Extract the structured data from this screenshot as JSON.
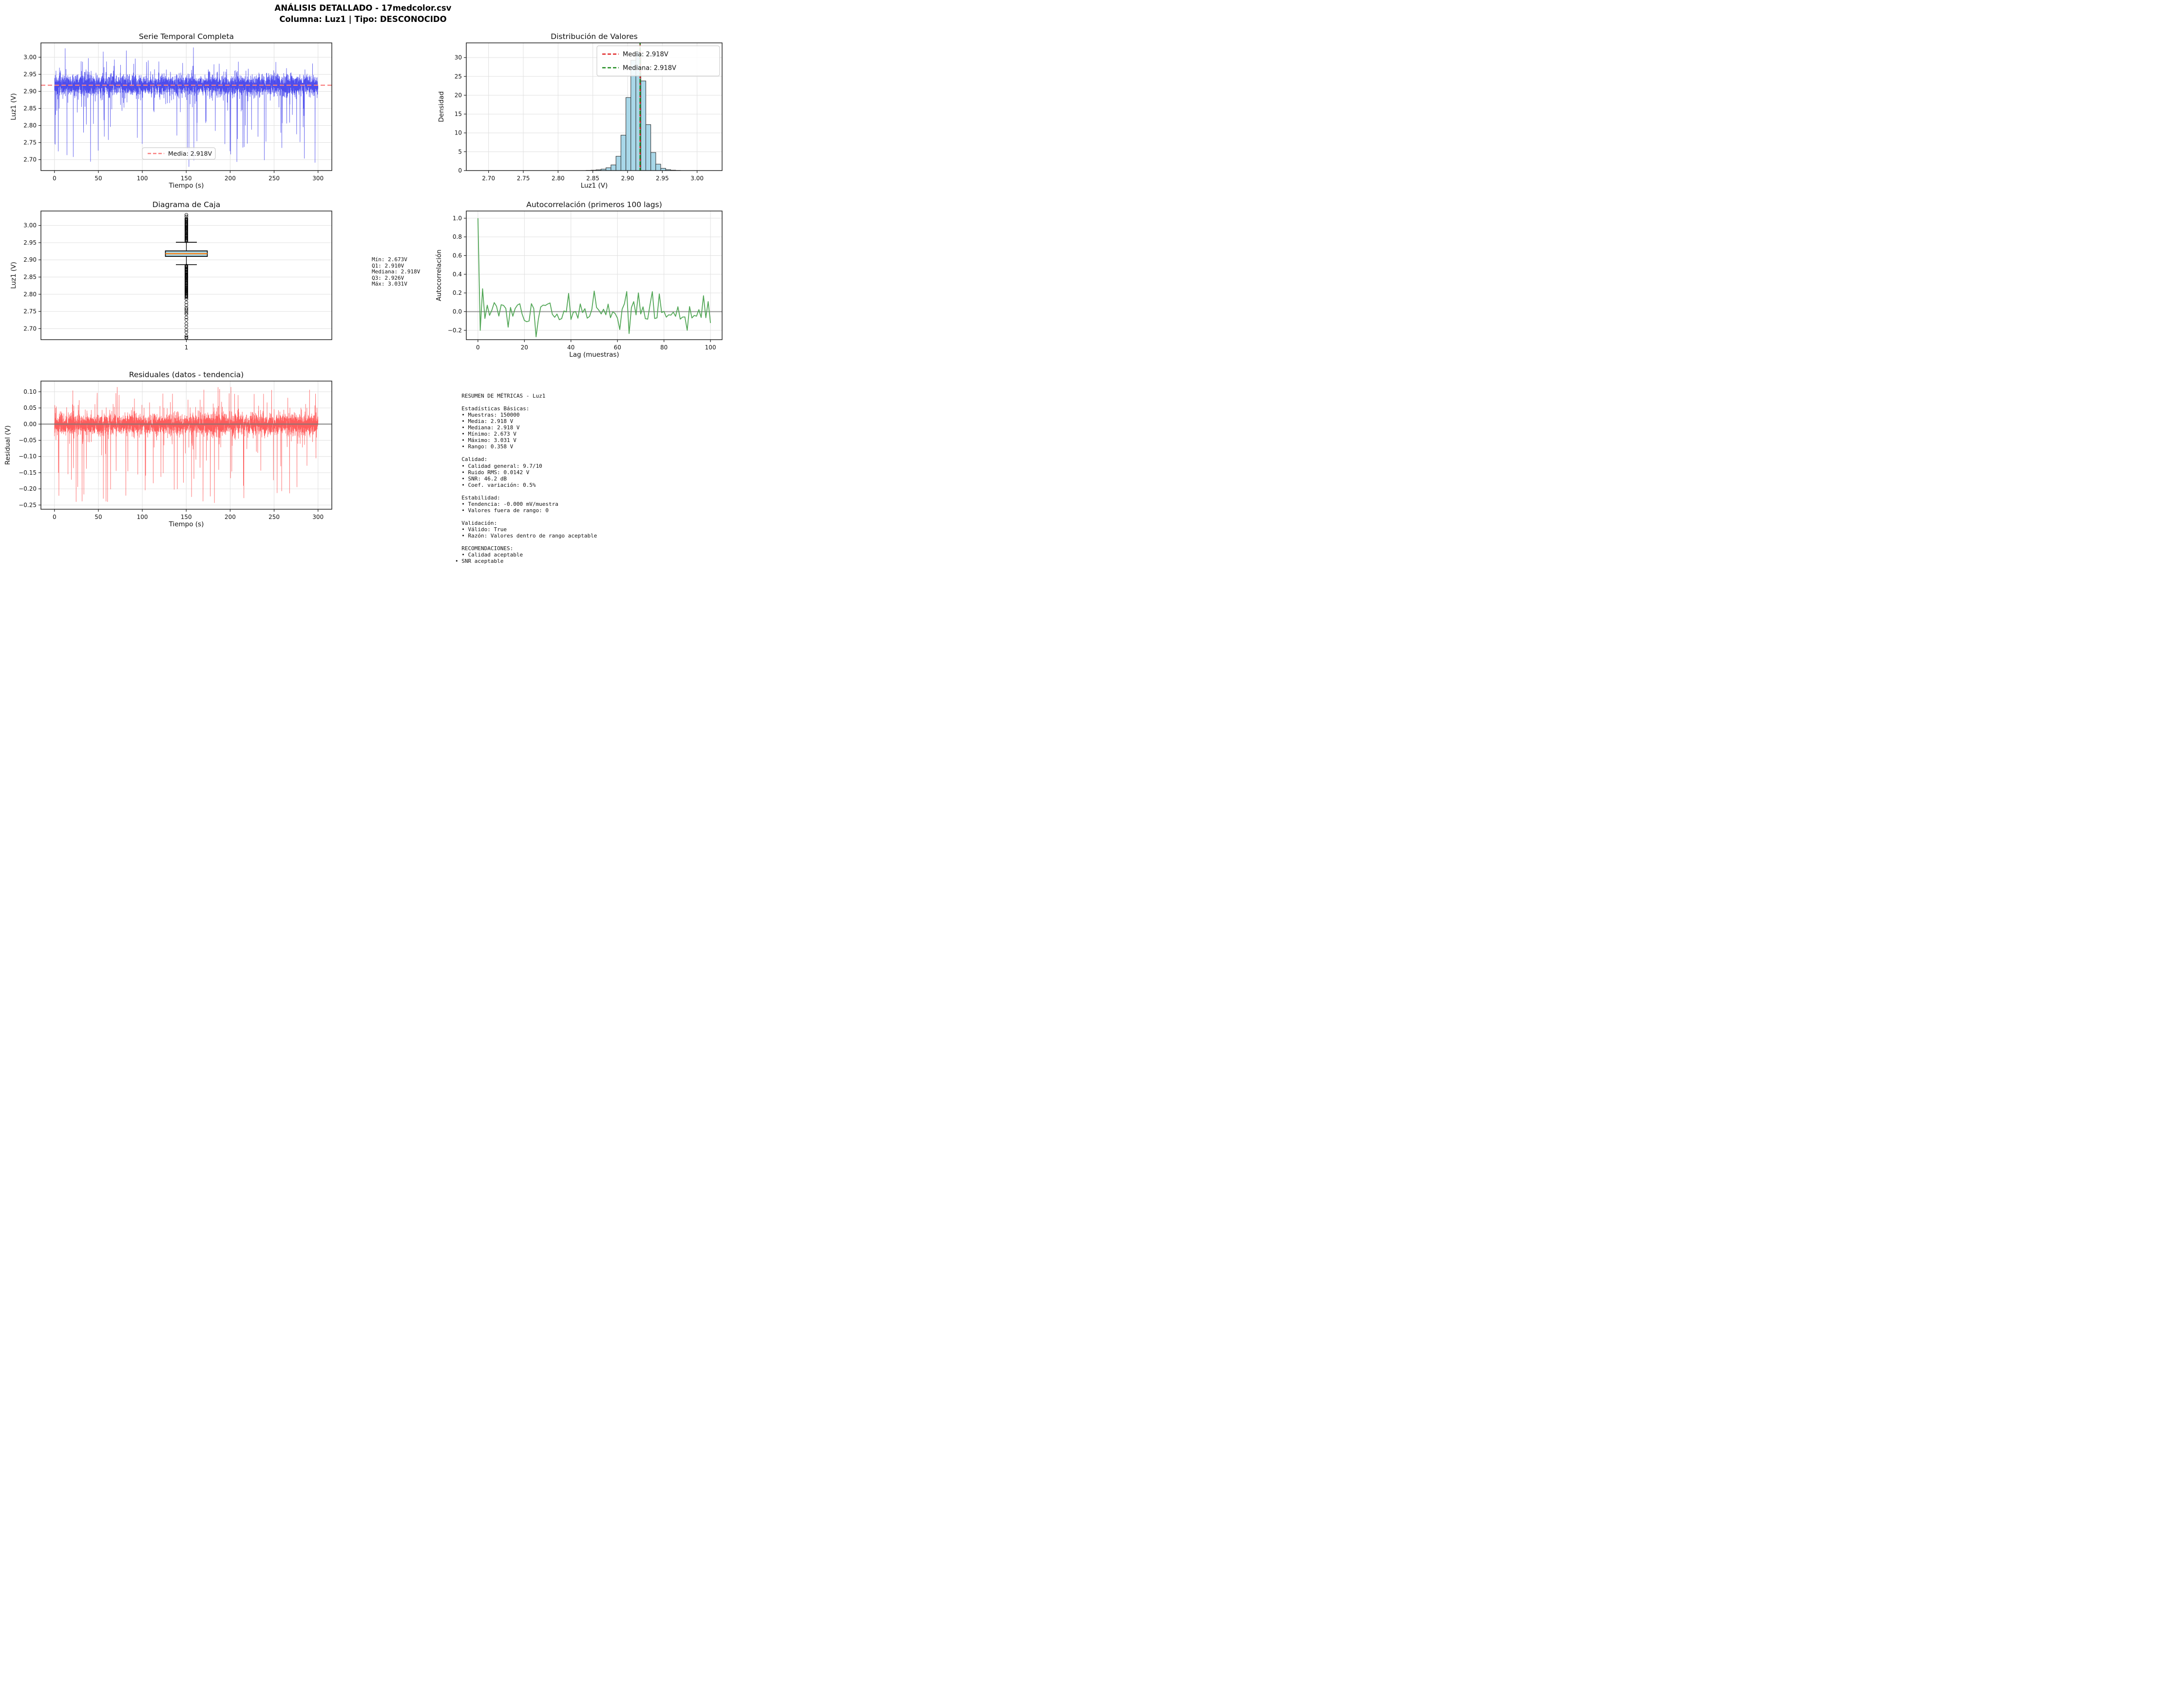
{
  "suptitle": {
    "line1": "ANÁLISIS DETALLADO - 17medcolor.csv",
    "line2": "Columna: Luz1 | Tipo: DESCONOCIDO"
  },
  "stats_box": {
    "lines": [
      "Mín: 2.673V",
      "Q1: 2.910V",
      "Mediana: 2.918V",
      "Q3: 2.926V",
      "Máx: 3.031V"
    ]
  },
  "metrics_box": {
    "lines": [
      "  RESUMEN DE MÉTRICAS - Luz1",
      "",
      "  Estadísticas Básicas:",
      "  • Muestras: 150000",
      "  • Media: 2.918 V",
      "  • Mediana: 2.918 V",
      "  • Mínimo: 2.673 V",
      "  • Máximo: 3.031 V",
      "  • Rango: 0.358 V",
      "",
      "  Calidad:",
      "  • Calidad general: 9.7/10",
      "  • Ruido RMS: 0.0142 V",
      "  • SNR: 46.2 dB",
      "  • Coef. variación: 0.5%",
      "",
      "  Estabilidad:",
      "  • Tendencia: -0.000 mV/muestra",
      "  • Valores fuera de rango: 0",
      "",
      "  Validación:",
      "  • Válido: True",
      "  • Razón: Valores dentro de rango aceptable",
      "",
      "  RECOMENDACIONES:",
      "  • Calidad aceptable",
      "• SNR aceptable"
    ]
  },
  "chart_data": [
    {
      "name": "serie_temporal",
      "type": "line",
      "title": "Serie Temporal Completa",
      "xlabel": "Tiempo (s)",
      "ylabel": "Luz1 (V)",
      "xlim": [
        -15.4,
        315.7
      ],
      "ylim": [
        2.668,
        3.042
      ],
      "xticks": [
        0,
        50,
        100,
        150,
        200,
        250,
        300
      ],
      "yticks": [
        2.7,
        2.75,
        2.8,
        2.85,
        2.9,
        2.95,
        3.0
      ],
      "series_color": "#2e2eea",
      "mean_line": {
        "value": 2.918,
        "color": "#f98080",
        "dashed": true
      },
      "legend": {
        "position": "lower-center",
        "entries": [
          {
            "label": "Media: 2.918V",
            "color": "#f98080"
          }
        ]
      },
      "signal": {
        "points": 4200,
        "mean": 2.918,
        "sigma": 0.0125,
        "med_amp": 0.032,
        "down": {
          "p": 0.015,
          "min": 0.05,
          "max": 0.245
        },
        "up": {
          "p": 0.008,
          "min": 0.05,
          "max": 0.113
        },
        "clamp": [
          2.673,
          3.031
        ],
        "seed": 20240,
        "t_start": 0,
        "t_end": 300,
        "n_samples_reported": 150000
      }
    },
    {
      "name": "distribucion",
      "type": "bar",
      "title": "Distribución de Valores",
      "xlabel": "Luz1 (V)",
      "ylabel": "Densidad",
      "xlim": [
        2.668,
        3.036
      ],
      "ylim": [
        0,
        33.9
      ],
      "xticks": [
        2.7,
        2.75,
        2.8,
        2.85,
        2.9,
        2.95,
        3.0
      ],
      "yticks": [
        0,
        5,
        10,
        15,
        20,
        25,
        30
      ],
      "bar_color": "#a8d7e8",
      "bar_edge": "#2d2d2d",
      "bins": {
        "width": 0.00716,
        "centers": [
          2.8439,
          2.8511,
          2.8582,
          2.8654,
          2.8725,
          2.8797,
          2.8869,
          2.894,
          2.9012,
          2.9083,
          2.9155,
          2.9227,
          2.9298,
          2.937,
          2.9441,
          2.9513,
          2.9584,
          2.9656,
          2.9727
        ],
        "densities": [
          0.05,
          0.1,
          0.2,
          0.38,
          0.75,
          1.5,
          3.8,
          9.4,
          19.4,
          29.3,
          31.6,
          23.8,
          12.2,
          4.8,
          1.7,
          0.6,
          0.25,
          0.1,
          0.04
        ]
      },
      "vlines": [
        {
          "value": 2.918,
          "color": "#e02222",
          "label": "Media: 2.918V"
        },
        {
          "value": 2.918,
          "color": "#1f8b1f",
          "label": "Mediana: 2.918V"
        }
      ],
      "legend": {
        "position": "upper-right"
      }
    },
    {
      "name": "diagrama_caja",
      "type": "box",
      "title": "Diagrama de Caja",
      "xlabel": "",
      "ylabel": "Luz1 (V)",
      "xlim": [
        0.5,
        1.5
      ],
      "ylim": [
        2.668,
        3.042
      ],
      "xticks": [
        1
      ],
      "yticks": [
        2.7,
        2.75,
        2.8,
        2.85,
        2.9,
        2.95,
        3.0
      ],
      "box_color": "#add8e6",
      "median_color": "#ff7f0e",
      "stats": {
        "min": 2.673,
        "q1": 2.91,
        "median": 2.918,
        "q3": 2.926,
        "max": 3.031,
        "whisker_low": 2.886,
        "whisker_high": 2.951
      },
      "outliers": {
        "seed": 5150,
        "upper_dense": [
          2.954,
          3.022
        ],
        "upper_sparse": [
          3.026,
          3.031
        ],
        "lower_dense": [
          2.883,
          2.79
        ],
        "lower_sparse_to": 2.673,
        "radius": 3.1
      }
    },
    {
      "name": "autocorrelacion",
      "type": "line",
      "title": "Autocorrelación (primeros 100 lags)",
      "xlabel": "Lag (muestras)",
      "ylabel": "Autocorrelación",
      "xlim": [
        -5,
        105
      ],
      "ylim": [
        -0.3,
        1.077
      ],
      "xticks": [
        0,
        20,
        40,
        60,
        80,
        100
      ],
      "yticks": [
        -0.2,
        0.0,
        0.2,
        0.4,
        0.6,
        0.8,
        1.0
      ],
      "series_color": "#4aa24e",
      "zero_line_color": "#888888",
      "acf": {
        "n": 101,
        "lag0": 1.0,
        "base_amp": 0.11,
        "seed": 31,
        "range": [
          -0.27,
          0.245
        ],
        "overrides": {
          "1": -0.2,
          "2": 0.245,
          "25": -0.27,
          "39": 0.195,
          "50": 0.22,
          "64": 0.215,
          "65": -0.235,
          "78": 0.19,
          "90": -0.2,
          "97": 0.17
        }
      }
    },
    {
      "name": "residuales",
      "type": "line",
      "title": "Residuales (datos - tendencia)",
      "xlabel": "Tiempo (s)",
      "ylabel": "Residual (V)",
      "xlim": [
        -15.4,
        315.7
      ],
      "ylim": [
        -0.263,
        0.133
      ],
      "xticks": [
        0,
        50,
        100,
        150,
        200,
        250,
        300
      ],
      "yticks": [
        -0.25,
        -0.2,
        -0.15,
        -0.1,
        -0.05,
        0.0,
        0.05,
        0.1
      ],
      "series_color": "#ff4747",
      "zero_line_color": "#777777",
      "signal": {
        "points": 4200,
        "mean": 0,
        "sigma": 0.0135,
        "med_amp": 0.034,
        "down": {
          "p": 0.02,
          "min": 0.05,
          "max": 0.245
        },
        "up": {
          "p": 0.009,
          "min": 0.05,
          "max": 0.115
        },
        "clamp": [
          -0.245,
          0.115
        ],
        "seed": 777,
        "t_start": 0,
        "t_end": 300
      }
    }
  ]
}
